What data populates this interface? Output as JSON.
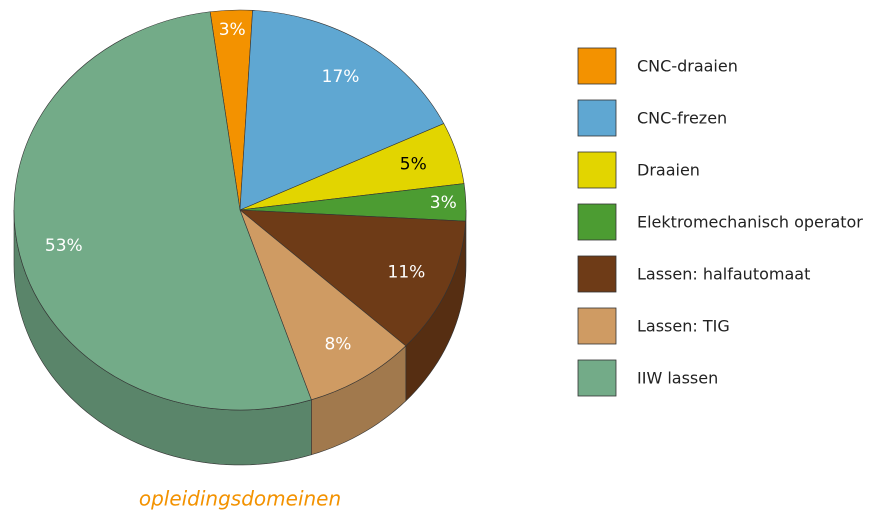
{
  "chart_data": {
    "type": "pie",
    "title": "opleidingsdomeinen",
    "categories": [
      "CNC-draaien",
      "CNC-frezen",
      "Draaien",
      "Elektromechanisch operator",
      "Lassen: halfautomaat",
      "Lassen: TIG",
      "IIW lassen"
    ],
    "values": [
      3,
      17,
      5,
      3,
      11,
      8,
      53
    ],
    "value_labels": [
      "3%",
      "17%",
      "5%",
      "3%",
      "11%",
      "8%",
      "53%"
    ],
    "colors": [
      "#f39200",
      "#5fa7d2",
      "#e2d500",
      "#4c9c32",
      "#6e3b17",
      "#cf9b63",
      "#73ab88"
    ],
    "legend": "right"
  }
}
